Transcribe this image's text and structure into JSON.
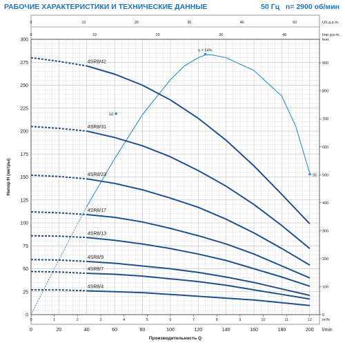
{
  "header": {
    "title": "РАБОЧИЕ ХАРАКТЕРИСТИКИ И ТЕХНИЧЕСКИЕ ДАННЫЕ",
    "frequency": "50 Гц",
    "speed": "n= 2900 об/мин"
  },
  "colors": {
    "curve": "#1f4e8c",
    "efficiency": "#2a90c8",
    "title": "#1b75bb",
    "grid": "#c8c8c8"
  },
  "chart_data": {
    "type": "line",
    "xlabel": "Производительность Q",
    "ylabel": "Напор H (метры)",
    "x_unit_bottom": "l/min",
    "x_unit_m3h": "m³/h",
    "x_unit_us": "US g.p.m.",
    "x_unit_imp": "Imp g.p.m.",
    "y_unit_right": "feet",
    "xlim": [
      0,
      200
    ],
    "ylim": [
      0,
      300
    ],
    "xticks_lmin": [
      0,
      20,
      40,
      60,
      80,
      100,
      120,
      140,
      160,
      180,
      200
    ],
    "xticks_m3h": [
      0,
      1,
      2,
      3,
      4,
      5,
      6,
      7,
      8,
      9,
      10,
      11,
      12
    ],
    "xticks_us": [
      0,
      10,
      20,
      30,
      40,
      50
    ],
    "xticks_imp": [
      0,
      10,
      20,
      30,
      40
    ],
    "yticks": [
      0,
      25,
      50,
      75,
      100,
      125,
      150,
      175,
      200,
      225,
      250,
      275,
      300
    ],
    "yticks_feet": [
      0,
      100,
      200,
      300,
      400,
      500,
      600,
      700,
      800,
      900
    ],
    "series": [
      {
        "name": "4SR8/42",
        "shutoff": 280,
        "points": [
          [
            40,
            271
          ],
          [
            60,
            262
          ],
          [
            80,
            250
          ],
          [
            100,
            234
          ],
          [
            120,
            214
          ],
          [
            140,
            190
          ],
          [
            160,
            162
          ],
          [
            180,
            131
          ],
          [
            200,
            99
          ]
        ]
      },
      {
        "name": "4SR8/31",
        "shutoff": 205,
        "points": [
          [
            40,
            200
          ],
          [
            60,
            193
          ],
          [
            80,
            184
          ],
          [
            100,
            172
          ],
          [
            120,
            157
          ],
          [
            140,
            140
          ],
          [
            160,
            120
          ],
          [
            180,
            97
          ],
          [
            200,
            72
          ]
        ]
      },
      {
        "name": "4SR8/23",
        "shutoff": 152,
        "points": [
          [
            40,
            148
          ],
          [
            60,
            143
          ],
          [
            80,
            136
          ],
          [
            100,
            127
          ],
          [
            120,
            117
          ],
          [
            140,
            104
          ],
          [
            160,
            89
          ],
          [
            180,
            72
          ],
          [
            200,
            54
          ]
        ]
      },
      {
        "name": "4SR8/17",
        "shutoff": 112,
        "points": [
          [
            40,
            109
          ],
          [
            60,
            106
          ],
          [
            80,
            101
          ],
          [
            100,
            94
          ],
          [
            120,
            86
          ],
          [
            140,
            77
          ],
          [
            160,
            66
          ],
          [
            180,
            53
          ],
          [
            200,
            40
          ]
        ]
      },
      {
        "name": "4SR8/13",
        "shutoff": 86,
        "points": [
          [
            40,
            84
          ],
          [
            60,
            81
          ],
          [
            80,
            77
          ],
          [
            100,
            72
          ],
          [
            120,
            66
          ],
          [
            140,
            59
          ],
          [
            160,
            50
          ],
          [
            180,
            41
          ],
          [
            200,
            31
          ]
        ]
      },
      {
        "name": "4SR8/9",
        "shutoff": 60,
        "points": [
          [
            40,
            58
          ],
          [
            60,
            56
          ],
          [
            80,
            53
          ],
          [
            100,
            50
          ],
          [
            120,
            46
          ],
          [
            140,
            41
          ],
          [
            160,
            35
          ],
          [
            180,
            28
          ],
          [
            200,
            21
          ]
        ]
      },
      {
        "name": "4SR8/7",
        "shutoff": 47,
        "points": [
          [
            40,
            45
          ],
          [
            60,
            44
          ],
          [
            80,
            42
          ],
          [
            100,
            39
          ],
          [
            120,
            36
          ],
          [
            140,
            32
          ],
          [
            160,
            27
          ],
          [
            180,
            22
          ],
          [
            200,
            17
          ]
        ]
      },
      {
        "name": "4SR8/4",
        "shutoff": 27,
        "points": [
          [
            40,
            26
          ],
          [
            60,
            25
          ],
          [
            80,
            24
          ],
          [
            100,
            22
          ],
          [
            120,
            20
          ],
          [
            140,
            18
          ],
          [
            160,
            16
          ],
          [
            180,
            13
          ],
          [
            200,
            10
          ]
        ]
      }
    ],
    "efficiency": {
      "label": "η = 64%",
      "marker_50": "50",
      "marker_35": "35",
      "points": [
        [
          0,
          0
        ],
        [
          20,
          60
        ],
        [
          40,
          118
        ],
        [
          60,
          170
        ],
        [
          80,
          218
        ],
        [
          100,
          256
        ],
        [
          110,
          271
        ],
        [
          120,
          280
        ],
        [
          125,
          283
        ],
        [
          130,
          283
        ],
        [
          140,
          280
        ],
        [
          160,
          266
        ],
        [
          180,
          238
        ],
        [
          190,
          205
        ],
        [
          200,
          154
        ]
      ],
      "dashed_until_x": 40,
      "peak": [
        125,
        284
      ],
      "m50": [
        61,
        219
      ],
      "m35": [
        200,
        153
      ]
    }
  }
}
